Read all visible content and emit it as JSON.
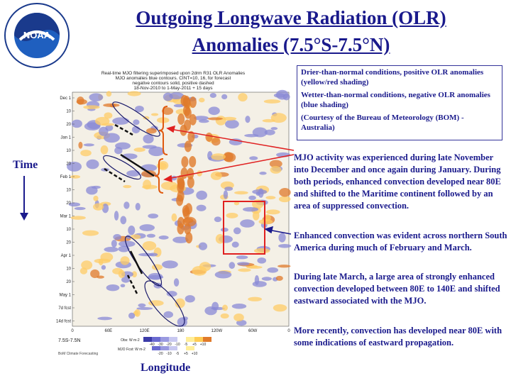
{
  "header": {
    "title_line1": "Outgoing Longwave Radiation (OLR)",
    "title_line2": "Anomalies (7.5°S-7.5°N)"
  },
  "logo": {
    "text": "NOAA",
    "ring_text": "NATIONAL OCEANIC AND ATMOSPHERIC ADMINISTRATION · U.S. DEPARTMENT OF COMMERCE"
  },
  "figure": {
    "heading_lines": [
      "Real-time MJO filtering superimposed upon 2drm R31 OLR Anomalies",
      "MJO anomalies blue contours. CINT=10, 16, for forecast",
      "negative contours solid, positive dashed",
      "18-Nov-2010 to 1-May-2011 + 15 days"
    ],
    "date_labels": [
      "Dec 1",
      "10",
      "20",
      "Jan 1",
      "10",
      "20",
      "Feb 1",
      "10",
      "20",
      "Mar 1",
      "10",
      "20",
      "Apr 1",
      "10",
      "20",
      "May 1",
      "7d fcst",
      "14d fcst"
    ],
    "lon_labels": [
      "0",
      "60E",
      "120E",
      "180",
      "120W",
      "60W",
      "0"
    ],
    "colorbar_values": [
      "-40",
      "-30",
      "-20",
      "-10",
      "-5",
      "+5",
      "+10"
    ],
    "colorbar_values_lower": [
      "-20",
      "-10",
      "-5",
      "+5",
      "+10"
    ],
    "legend_obs": "Obs: W m-2",
    "legend_fcst": "MJO Fcst: W m-2",
    "range_label": "7.5S-7.5N",
    "credit": "BoM Climate Forecasting",
    "colors": {
      "wet": "#8a8ad6",
      "dry": "#ffcc66",
      "strong_dry": "#e07a2a"
    }
  },
  "axes": {
    "time_label": "Time",
    "longitude_label": "Longitude"
  },
  "legend_box": {
    "line1": "Drier-than-normal conditions, positive OLR anomalies (yellow/red shading)",
    "line2": "Wetter-than-normal conditions, negative OLR anomalies (blue shading)",
    "line3": "(Courtesy of the Bureau of Meteorology (BOM) - Australia)"
  },
  "annotations": {
    "mjo_text": "MJO activity was experienced during late November into December and once again during January. During both periods, enhanced convection developed near 80E and shifted to the Maritime continent followed by an area of suppressed convection.",
    "sa_text": "Enhanced convection was evident across northern South America during much of February and March.",
    "march_text": "During late March, a large area of strongly enhanced convection developed between 80E to 140E and shifted eastward associated with the MJO.",
    "recent_text": "More recently, convection has developed near 80E with some indications of eastward propagation."
  }
}
